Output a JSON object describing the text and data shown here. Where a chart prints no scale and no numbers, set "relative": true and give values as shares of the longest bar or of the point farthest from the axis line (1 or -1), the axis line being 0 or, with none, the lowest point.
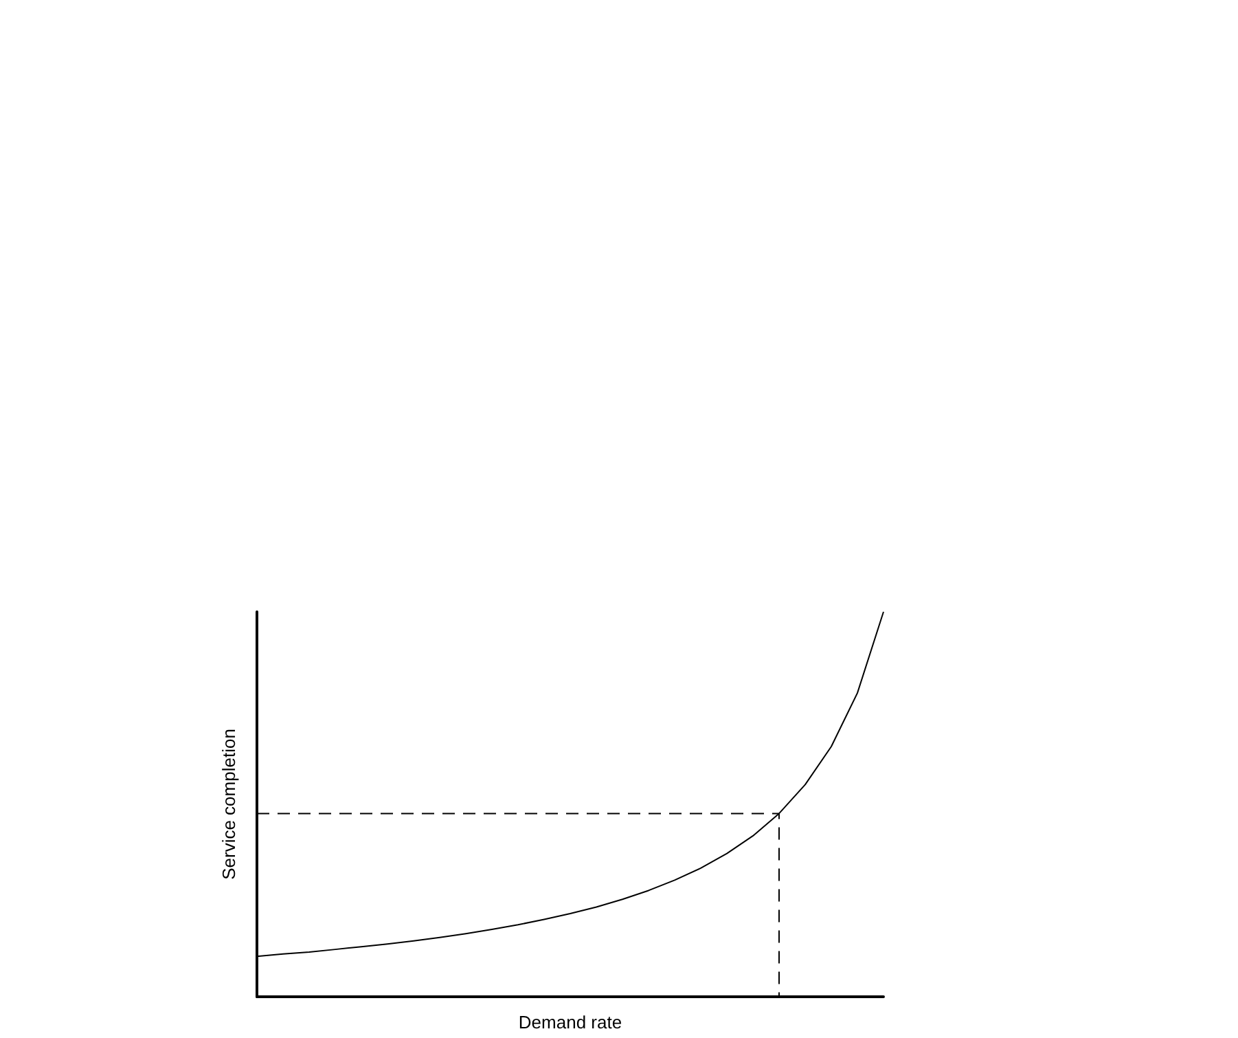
{
  "chart_data": {
    "type": "line",
    "relative": true,
    "xlabel": "Demand rate",
    "ylabel": "Service completion",
    "grid": false,
    "marker": "none",
    "categories": [
      null,
      null,
      null,
      null,
      null,
      null,
      null,
      null,
      null,
      null,
      null,
      null,
      null,
      null,
      null,
      null,
      null,
      null,
      null,
      null,
      null,
      null,
      null,
      null,
      null
    ],
    "series": [
      {
        "color": "#000000",
        "line_style": "solid",
        "values": [
          0.105,
          0.111,
          0.116,
          0.123,
          0.13,
          0.137,
          0.145,
          0.154,
          0.164,
          0.175,
          0.187,
          0.201,
          0.216,
          0.233,
          0.253,
          0.276,
          0.303,
          0.334,
          0.372,
          0.418,
          0.476,
          0.551,
          0.65,
          0.789,
          1.0
        ]
      },
      {
        "type": "step",
        "color": "#000000",
        "line_style": "dashed",
        "values": [
          0.476,
          0.476,
          0.476,
          0.476,
          0.476,
          0.476,
          0.476,
          0.476,
          0.476,
          0.476,
          0.476,
          0.476,
          0.476,
          0.476,
          0.476,
          0.476,
          0.476,
          0.476,
          0.476,
          0.476,
          0.476,
          0,
          null,
          null,
          null
        ]
      }
    ]
  }
}
